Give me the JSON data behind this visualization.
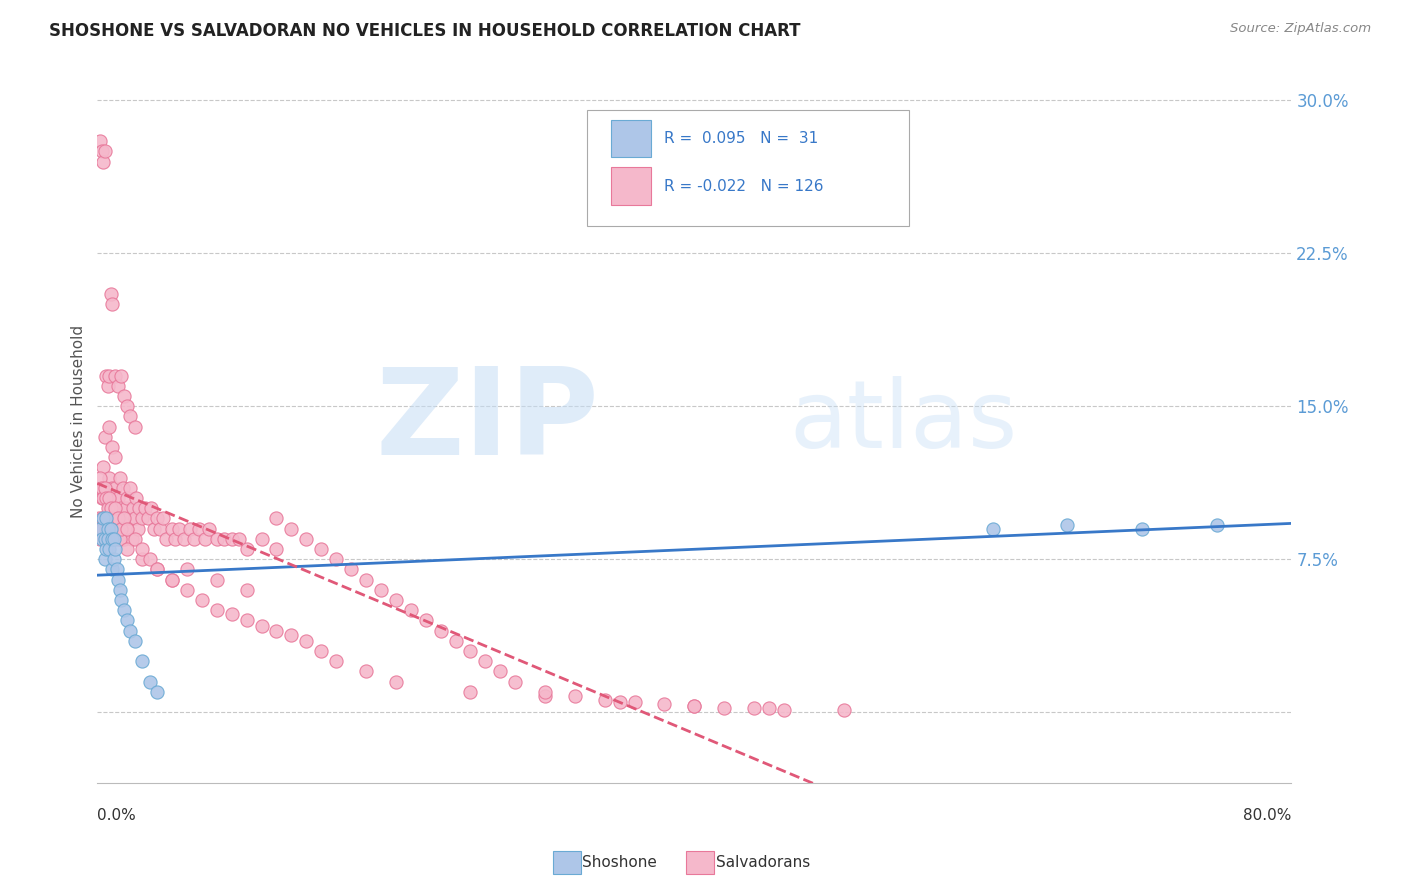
{
  "title": "SHOSHONE VS SALVADORAN NO VEHICLES IN HOUSEHOLD CORRELATION CHART",
  "source": "Source: ZipAtlas.com",
  "ylabel": "No Vehicles in Household",
  "yticks": [
    0.0,
    0.075,
    0.15,
    0.225,
    0.3
  ],
  "ytick_labels": [
    "",
    "7.5%",
    "15.0%",
    "22.5%",
    "30.0%"
  ],
  "xlim": [
    0.0,
    0.8
  ],
  "ylim": [
    -0.035,
    0.32
  ],
  "watermark_zip": "ZIP",
  "watermark_atlas": "atlas",
  "shoshone_color": "#aec6e8",
  "shoshone_edge": "#6aaad4",
  "salvadoran_color": "#f5b8cb",
  "salvadoran_edge": "#e8789a",
  "trend_shoshone_color": "#3878c8",
  "trend_salvadoran_color": "#e05878",
  "background_color": "#ffffff",
  "grid_color": "#c8c8c8",
  "ytick_color": "#5b9bd5",
  "title_color": "#222222",
  "source_color": "#888888",
  "legend_text_color": "#3878c8",
  "legend_label_color": "#333333",
  "shoshone_x": [
    0.002,
    0.003,
    0.004,
    0.005,
    0.005,
    0.006,
    0.006,
    0.007,
    0.007,
    0.008,
    0.009,
    0.01,
    0.01,
    0.011,
    0.011,
    0.012,
    0.013,
    0.014,
    0.015,
    0.016,
    0.018,
    0.02,
    0.022,
    0.025,
    0.03,
    0.035,
    0.04,
    0.6,
    0.65,
    0.7,
    0.75
  ],
  "shoshone_y": [
    0.09,
    0.085,
    0.095,
    0.085,
    0.075,
    0.095,
    0.08,
    0.09,
    0.085,
    0.08,
    0.09,
    0.085,
    0.07,
    0.085,
    0.075,
    0.08,
    0.07,
    0.065,
    0.06,
    0.055,
    0.05,
    0.045,
    0.04,
    0.035,
    0.025,
    0.015,
    0.01,
    0.09,
    0.092,
    0.09,
    0.092
  ],
  "salvadoran_x": [
    0.001,
    0.002,
    0.002,
    0.003,
    0.003,
    0.004,
    0.004,
    0.005,
    0.005,
    0.006,
    0.006,
    0.007,
    0.007,
    0.008,
    0.008,
    0.009,
    0.009,
    0.01,
    0.01,
    0.011,
    0.011,
    0.012,
    0.012,
    0.013,
    0.013,
    0.014,
    0.014,
    0.015,
    0.015,
    0.016,
    0.016,
    0.017,
    0.017,
    0.018,
    0.019,
    0.02,
    0.02,
    0.021,
    0.022,
    0.023,
    0.024,
    0.025,
    0.026,
    0.027,
    0.028,
    0.03,
    0.032,
    0.034,
    0.036,
    0.038,
    0.04,
    0.042,
    0.044,
    0.046,
    0.05,
    0.052,
    0.055,
    0.058,
    0.062,
    0.065,
    0.068,
    0.072,
    0.075,
    0.08,
    0.085,
    0.09,
    0.095,
    0.1,
    0.11,
    0.12,
    0.002,
    0.003,
    0.004,
    0.005,
    0.006,
    0.007,
    0.008,
    0.009,
    0.01,
    0.012,
    0.014,
    0.016,
    0.018,
    0.02,
    0.022,
    0.025,
    0.005,
    0.008,
    0.01,
    0.012,
    0.003,
    0.004,
    0.005,
    0.006,
    0.007,
    0.008,
    0.009,
    0.01,
    0.015,
    0.02,
    0.03,
    0.04,
    0.05,
    0.06,
    0.08,
    0.1,
    0.002,
    0.003,
    0.004,
    0.005,
    0.006,
    0.007,
    0.008,
    0.009,
    0.01,
    0.012,
    0.014,
    0.016,
    0.018,
    0.02,
    0.025,
    0.03,
    0.035,
    0.04,
    0.05,
    0.06,
    0.07,
    0.08,
    0.09,
    0.1,
    0.11,
    0.12,
    0.13,
    0.14,
    0.15,
    0.16,
    0.18,
    0.2,
    0.25,
    0.3,
    0.35,
    0.4,
    0.45,
    0.5,
    0.12,
    0.13,
    0.14,
    0.15,
    0.16,
    0.17,
    0.18,
    0.19,
    0.2,
    0.21,
    0.22,
    0.23,
    0.24,
    0.25,
    0.26,
    0.27,
    0.28,
    0.3,
    0.32,
    0.34,
    0.36,
    0.38,
    0.4,
    0.42,
    0.44,
    0.46
  ],
  "salvadoran_y": [
    0.095,
    0.085,
    0.11,
    0.09,
    0.105,
    0.095,
    0.12,
    0.085,
    0.105,
    0.095,
    0.11,
    0.09,
    0.105,
    0.1,
    0.115,
    0.085,
    0.1,
    0.095,
    0.11,
    0.09,
    0.105,
    0.095,
    0.11,
    0.085,
    0.1,
    0.09,
    0.105,
    0.095,
    0.115,
    0.085,
    0.1,
    0.095,
    0.11,
    0.085,
    0.1,
    0.09,
    0.105,
    0.095,
    0.11,
    0.085,
    0.1,
    0.095,
    0.105,
    0.09,
    0.1,
    0.095,
    0.1,
    0.095,
    0.1,
    0.09,
    0.095,
    0.09,
    0.095,
    0.085,
    0.09,
    0.085,
    0.09,
    0.085,
    0.09,
    0.085,
    0.09,
    0.085,
    0.09,
    0.085,
    0.085,
    0.085,
    0.085,
    0.08,
    0.085,
    0.08,
    0.28,
    0.275,
    0.27,
    0.275,
    0.165,
    0.16,
    0.165,
    0.205,
    0.2,
    0.165,
    0.16,
    0.165,
    0.155,
    0.15,
    0.145,
    0.14,
    0.135,
    0.14,
    0.13,
    0.125,
    0.095,
    0.09,
    0.085,
    0.09,
    0.085,
    0.09,
    0.085,
    0.09,
    0.085,
    0.08,
    0.075,
    0.07,
    0.065,
    0.07,
    0.065,
    0.06,
    0.115,
    0.11,
    0.105,
    0.11,
    0.105,
    0.1,
    0.105,
    0.1,
    0.095,
    0.1,
    0.095,
    0.09,
    0.095,
    0.09,
    0.085,
    0.08,
    0.075,
    0.07,
    0.065,
    0.06,
    0.055,
    0.05,
    0.048,
    0.045,
    0.042,
    0.04,
    0.038,
    0.035,
    0.03,
    0.025,
    0.02,
    0.015,
    0.01,
    0.008,
    0.005,
    0.003,
    0.002,
    0.001,
    0.095,
    0.09,
    0.085,
    0.08,
    0.075,
    0.07,
    0.065,
    0.06,
    0.055,
    0.05,
    0.045,
    0.04,
    0.035,
    0.03,
    0.025,
    0.02,
    0.015,
    0.01,
    0.008,
    0.006,
    0.005,
    0.004,
    0.003,
    0.002,
    0.002,
    0.001
  ]
}
